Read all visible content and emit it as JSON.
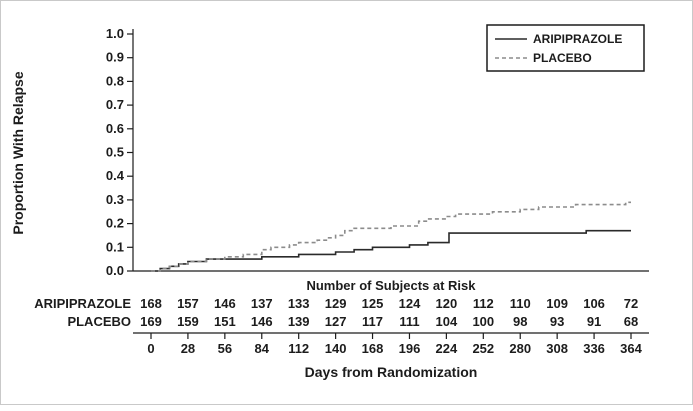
{
  "chart_data": {
    "type": "line",
    "subtype": "step",
    "title": "",
    "xlabel": "Days from Randomization",
    "ylabel": "Proportion With Relapse",
    "xlim": [
      0,
      364
    ],
    "ylim": [
      0,
      1.0
    ],
    "grid": false,
    "legend_position": "top-right",
    "x_ticks": [
      0,
      28,
      56,
      84,
      112,
      140,
      168,
      196,
      224,
      252,
      280,
      308,
      336,
      364
    ],
    "y_ticks": [
      0.0,
      0.1,
      0.2,
      0.3,
      0.4,
      0.5,
      0.6,
      0.7,
      0.8,
      0.9,
      1.0
    ],
    "series": [
      {
        "name": "ARIPIPRAZOLE",
        "line": "solid",
        "color": "#2a2a2a",
        "points": [
          [
            0,
            0
          ],
          [
            7,
            0.01
          ],
          [
            14,
            0.02
          ],
          [
            21,
            0.03
          ],
          [
            28,
            0.04
          ],
          [
            42,
            0.05
          ],
          [
            56,
            0.05
          ],
          [
            70,
            0.05
          ],
          [
            84,
            0.06
          ],
          [
            98,
            0.06
          ],
          [
            112,
            0.07
          ],
          [
            126,
            0.07
          ],
          [
            140,
            0.08
          ],
          [
            154,
            0.09
          ],
          [
            168,
            0.1
          ],
          [
            182,
            0.1
          ],
          [
            196,
            0.11
          ],
          [
            210,
            0.12
          ],
          [
            220,
            0.12
          ],
          [
            226,
            0.16
          ],
          [
            252,
            0.16
          ],
          [
            280,
            0.16
          ],
          [
            308,
            0.16
          ],
          [
            330,
            0.17
          ],
          [
            364,
            0.17
          ]
        ]
      },
      {
        "name": "PLACEBO",
        "line": "dashed",
        "color": "#8c8c8c",
        "points": [
          [
            0,
            0
          ],
          [
            7,
            0.01
          ],
          [
            14,
            0.02
          ],
          [
            21,
            0.03
          ],
          [
            28,
            0.04
          ],
          [
            42,
            0.05
          ],
          [
            56,
            0.06
          ],
          [
            70,
            0.07
          ],
          [
            84,
            0.09
          ],
          [
            91,
            0.1
          ],
          [
            105,
            0.11
          ],
          [
            112,
            0.12
          ],
          [
            126,
            0.13
          ],
          [
            133,
            0.14
          ],
          [
            140,
            0.15
          ],
          [
            147,
            0.17
          ],
          [
            154,
            0.18
          ],
          [
            168,
            0.18
          ],
          [
            182,
            0.19
          ],
          [
            196,
            0.19
          ],
          [
            203,
            0.21
          ],
          [
            210,
            0.22
          ],
          [
            224,
            0.23
          ],
          [
            231,
            0.24
          ],
          [
            252,
            0.24
          ],
          [
            259,
            0.25
          ],
          [
            280,
            0.26
          ],
          [
            294,
            0.27
          ],
          [
            308,
            0.27
          ],
          [
            322,
            0.28
          ],
          [
            350,
            0.28
          ],
          [
            360,
            0.29
          ],
          [
            364,
            0.29
          ]
        ]
      }
    ],
    "subjects_at_risk": {
      "title": "Number of Subjects at Risk",
      "days": [
        0,
        28,
        56,
        84,
        112,
        140,
        168,
        196,
        224,
        252,
        280,
        308,
        336,
        364
      ],
      "rows": [
        {
          "name": "ARIPIPRAZOLE",
          "counts": [
            168,
            157,
            146,
            137,
            133,
            129,
            125,
            124,
            120,
            112,
            110,
            109,
            106,
            72
          ]
        },
        {
          "name": "PLACEBO",
          "counts": [
            169,
            159,
            151,
            146,
            139,
            127,
            117,
            111,
            104,
            100,
            98,
            93,
            91,
            68
          ]
        }
      ]
    }
  }
}
